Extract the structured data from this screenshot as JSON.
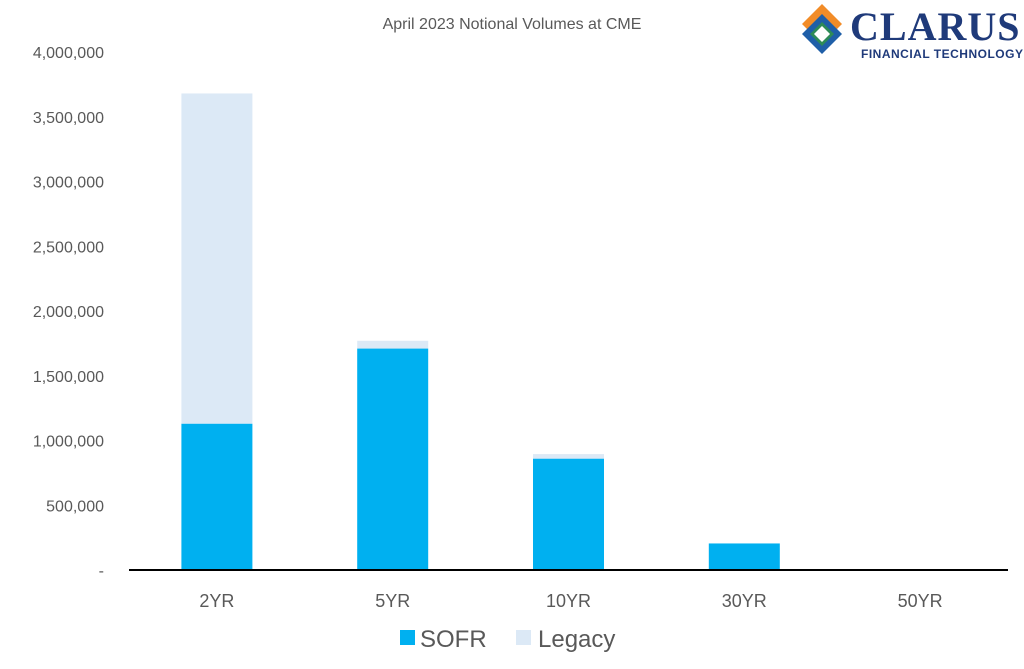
{
  "logo": {
    "name": "CLARUS",
    "tagline": "FINANCIAL TECHNOLOGY"
  },
  "chart_data": {
    "type": "bar",
    "stacked": true,
    "title": "April 2023 Notional Volumes at CME",
    "categories": [
      "2YR",
      "5YR",
      "10YR",
      "30YR",
      "50YR"
    ],
    "series": [
      {
        "name": "SOFR",
        "color": "#00b0f0",
        "values": [
          1130000,
          1710000,
          860000,
          205000,
          0
        ]
      },
      {
        "name": "Legacy",
        "color": "#dce9f6",
        "values": [
          2550000,
          60000,
          35000,
          0,
          0
        ]
      }
    ],
    "ylim": [
      0,
      4000000
    ],
    "yticks": [
      {
        "value": 0,
        "label": "-"
      },
      {
        "value": 500000,
        "label": "500,000"
      },
      {
        "value": 1000000,
        "label": "1,000,000"
      },
      {
        "value": 1500000,
        "label": "1,500,000"
      },
      {
        "value": 2000000,
        "label": "2,000,000"
      },
      {
        "value": 2500000,
        "label": "2,500,000"
      },
      {
        "value": 3000000,
        "label": "3,000,000"
      },
      {
        "value": 3500000,
        "label": "3,500,000"
      },
      {
        "value": 4000000,
        "label": "4,000,000"
      }
    ],
    "grid": false,
    "legend_position": "bottom",
    "axis_color": "#000000"
  }
}
